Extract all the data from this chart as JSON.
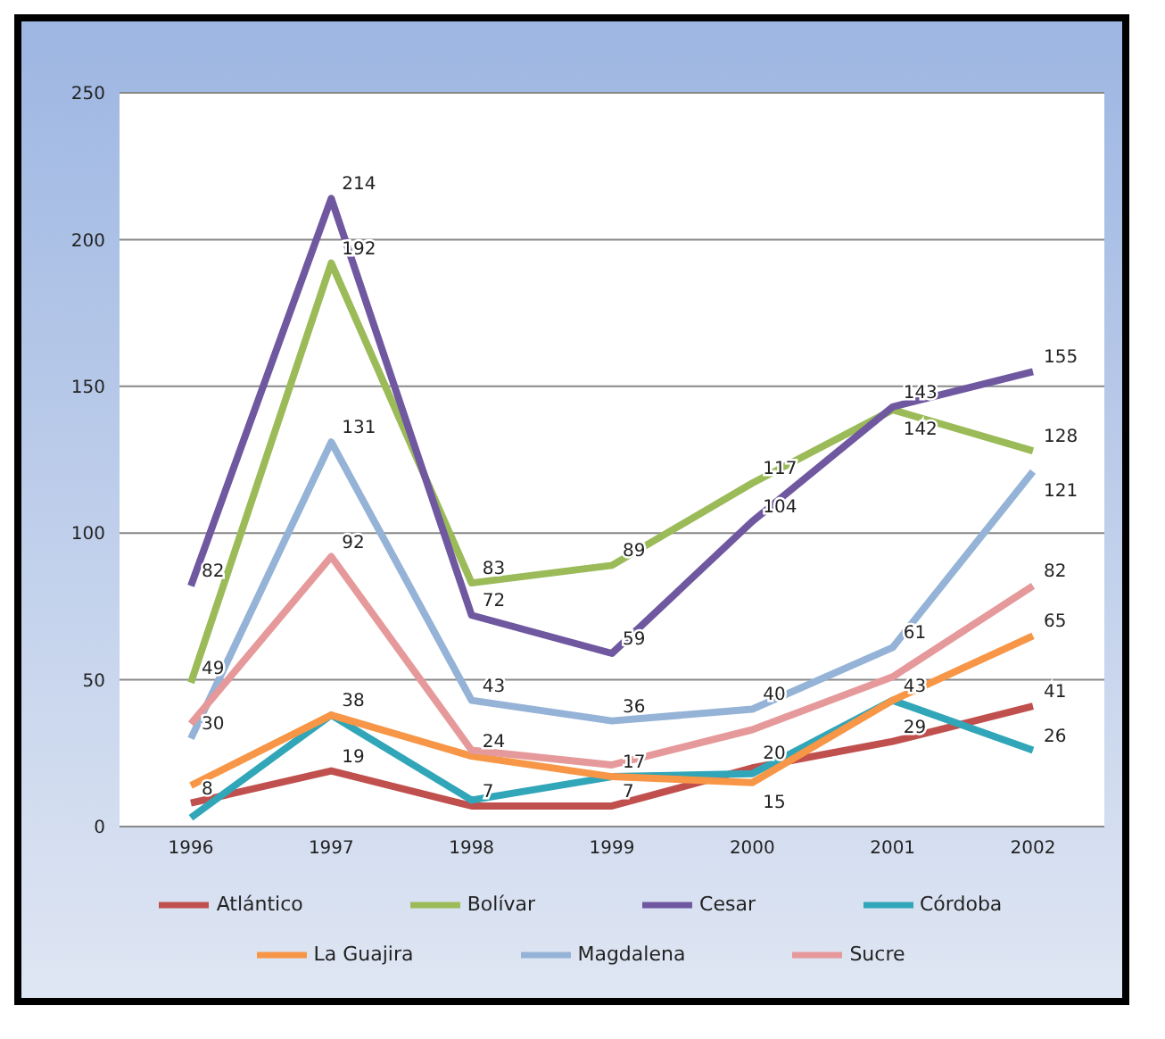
{
  "chart_data": {
    "type": "line",
    "categories": [
      "1996",
      "1997",
      "1998",
      "1999",
      "2000",
      "2001",
      "2002"
    ],
    "ylim": [
      0,
      250
    ],
    "yticks": [
      0,
      50,
      100,
      150,
      200,
      250
    ],
    "grid": "y",
    "legend": "bottom",
    "marker": "none",
    "line_style": "solid",
    "series": [
      {
        "name": "Atlántico",
        "color": "#c0504d",
        "values": [
          8,
          19,
          7,
          7,
          20,
          29,
          41
        ],
        "value_labels": [
          "8",
          "19",
          "7",
          "7",
          "20",
          "29",
          "41"
        ]
      },
      {
        "name": "Bolívar",
        "color": "#9bbb59",
        "values": [
          49,
          192,
          83,
          89,
          117,
          142,
          128
        ],
        "value_labels": [
          "49",
          "192",
          "83",
          "89",
          "117",
          "142",
          "128"
        ]
      },
      {
        "name": "Cesar",
        "color": "#6f58a0",
        "values": [
          82,
          214,
          72,
          59,
          104,
          143,
          155
        ],
        "value_labels": [
          "82",
          "214",
          "72",
          "59",
          "104",
          "143",
          "155"
        ]
      },
      {
        "name": "Córdoba",
        "color": "#31a6b8",
        "values": [
          3,
          38,
          9,
          17,
          18,
          43,
          26
        ],
        "value_labels": [
          null,
          null,
          null,
          null,
          null,
          "43",
          "26"
        ]
      },
      {
        "name": "La Guajira",
        "color": "#f79646",
        "values": [
          14,
          38,
          24,
          17,
          15,
          43,
          65
        ],
        "value_labels": [
          null,
          "38",
          "24",
          "17",
          "15",
          null,
          "65"
        ]
      },
      {
        "name": "Magdalena",
        "color": "#95b3d7",
        "values": [
          30,
          131,
          43,
          36,
          40,
          61,
          121
        ],
        "value_labels": [
          "30",
          "131",
          "43",
          "36",
          "40",
          "61",
          "121"
        ]
      },
      {
        "name": "Sucre",
        "color": "#e6999a",
        "values": [
          35,
          92,
          26,
          21,
          33,
          51,
          82
        ],
        "value_labels": [
          null,
          "92",
          null,
          null,
          null,
          null,
          "82"
        ]
      }
    ]
  }
}
